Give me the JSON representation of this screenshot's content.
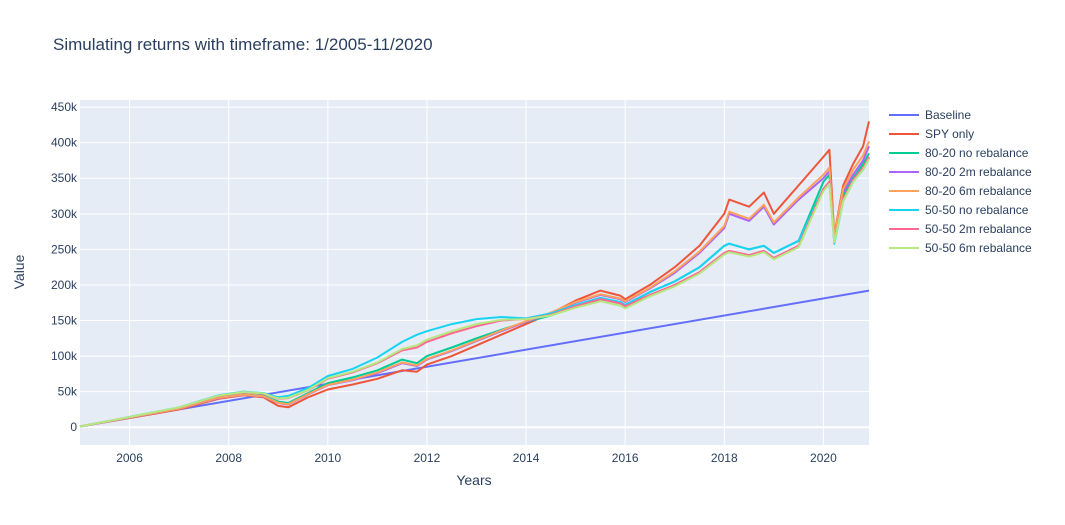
{
  "chart_data": {
    "type": "line",
    "title": "Simulating returns with timeframe: 1/2005-11/2020",
    "xlabel": "Years",
    "ylabel": "Value",
    "xlim": [
      2005.0,
      2020.92
    ],
    "ylim": [
      -25000,
      460000
    ],
    "x_ticks": [
      2006,
      2008,
      2010,
      2012,
      2014,
      2016,
      2018,
      2020
    ],
    "x_tick_labels": [
      "2006",
      "2008",
      "2010",
      "2012",
      "2014",
      "2016",
      "2018",
      "2020"
    ],
    "y_ticks": [
      0,
      50000,
      100000,
      150000,
      200000,
      250000,
      300000,
      350000,
      400000,
      450000
    ],
    "y_tick_labels": [
      "0",
      "50k",
      "100k",
      "150k",
      "200k",
      "250k",
      "300k",
      "350k",
      "400k",
      "450k"
    ],
    "grid": true,
    "legend_position": "right",
    "background": "#e5ecf6",
    "series": [
      {
        "name": "Baseline",
        "color": "#636efa",
        "x": [
          2005.0,
          2020.92
        ],
        "y": [
          1000,
          192000
        ]
      },
      {
        "name": "SPY only",
        "color": "#ef553b",
        "x": [
          2005.0,
          2006.0,
          2007.0,
          2007.8,
          2008.3,
          2008.7,
          2009.0,
          2009.2,
          2009.6,
          2010.0,
          2010.5,
          2011.0,
          2011.5,
          2011.8,
          2012.0,
          2012.5,
          2013.0,
          2013.5,
          2014.0,
          2014.5,
          2015.0,
          2015.5,
          2015.9,
          2016.0,
          2016.5,
          2017.0,
          2017.5,
          2018.0,
          2018.1,
          2018.5,
          2018.8,
          2019.0,
          2019.5,
          2020.0,
          2020.12,
          2020.22,
          2020.4,
          2020.6,
          2020.8,
          2020.92
        ],
        "y": [
          1000,
          13000,
          25000,
          40000,
          45000,
          42000,
          30000,
          28000,
          42000,
          53000,
          60000,
          68000,
          80000,
          78000,
          88000,
          100000,
          115000,
          130000,
          145000,
          160000,
          178000,
          192000,
          185000,
          180000,
          200000,
          225000,
          255000,
          300000,
          320000,
          310000,
          330000,
          300000,
          340000,
          380000,
          390000,
          270000,
          340000,
          370000,
          395000,
          430000
        ]
      },
      {
        "name": "80-20 no rebalance",
        "color": "#00cc96",
        "x": [
          2005.0,
          2006.0,
          2007.0,
          2007.8,
          2008.3,
          2008.7,
          2009.0,
          2009.2,
          2009.6,
          2010.0,
          2010.5,
          2011.0,
          2011.5,
          2011.8,
          2012.0,
          2012.5,
          2013.0,
          2013.5,
          2014.0,
          2014.5,
          2015.0,
          2015.5,
          2015.9,
          2016.0,
          2016.5,
          2017.0,
          2017.5,
          2018.0,
          2018.1,
          2018.5,
          2018.8,
          2019.0,
          2019.5,
          2020.0,
          2020.12,
          2020.22,
          2020.4,
          2020.6,
          2020.8,
          2020.92
        ],
        "y": [
          1000,
          14000,
          27000,
          42000,
          46000,
          44000,
          36000,
          34000,
          48000,
          62000,
          70000,
          80000,
          95000,
          90000,
          100000,
          112000,
          125000,
          137000,
          148000,
          157000,
          170000,
          180000,
          175000,
          172000,
          190000,
          205000,
          225000,
          255000,
          258000,
          250000,
          255000,
          245000,
          262000,
          345000,
          355000,
          262000,
          325000,
          350000,
          370000,
          385000
        ]
      },
      {
        "name": "80-20 2m rebalance",
        "color": "#ab63fa",
        "x": [
          2005.0,
          2006.0,
          2007.0,
          2007.8,
          2008.3,
          2008.7,
          2009.0,
          2009.2,
          2009.6,
          2010.0,
          2010.5,
          2011.0,
          2011.5,
          2011.8,
          2012.0,
          2012.5,
          2013.0,
          2013.5,
          2014.0,
          2014.5,
          2015.0,
          2015.5,
          2015.9,
          2016.0,
          2016.5,
          2017.0,
          2017.5,
          2018.0,
          2018.1,
          2018.5,
          2018.8,
          2019.0,
          2019.5,
          2020.0,
          2020.12,
          2020.22,
          2020.4,
          2020.6,
          2020.8,
          2020.92
        ],
        "y": [
          1000,
          13500,
          26000,
          41000,
          45500,
          43000,
          34000,
          32000,
          46000,
          59000,
          66000,
          76000,
          90000,
          86000,
          95000,
          107000,
          121000,
          135000,
          148000,
          160000,
          175000,
          186000,
          180000,
          176000,
          195000,
          217000,
          245000,
          280000,
          300000,
          290000,
          310000,
          285000,
          320000,
          350000,
          360000,
          265000,
          330000,
          355000,
          375000,
          395000
        ]
      },
      {
        "name": "80-20 6m rebalance",
        "color": "#ffa15a",
        "x": [
          2005.0,
          2006.0,
          2007.0,
          2007.8,
          2008.3,
          2008.7,
          2009.0,
          2009.2,
          2009.6,
          2010.0,
          2010.5,
          2011.0,
          2011.5,
          2011.8,
          2012.0,
          2012.5,
          2013.0,
          2013.5,
          2014.0,
          2014.5,
          2015.0,
          2015.5,
          2015.9,
          2016.0,
          2016.5,
          2017.0,
          2017.5,
          2018.0,
          2018.1,
          2018.5,
          2018.8,
          2019.0,
          2019.5,
          2020.0,
          2020.12,
          2020.22,
          2020.4,
          2020.6,
          2020.8,
          2020.92
        ],
        "y": [
          1000,
          13600,
          26200,
          41500,
          45800,
          43500,
          34500,
          32500,
          46500,
          59500,
          67000,
          77000,
          91000,
          87000,
          96000,
          108000,
          122000,
          136000,
          149000,
          161000,
          176000,
          187000,
          181000,
          177000,
          196000,
          219000,
          247000,
          283000,
          303000,
          293000,
          313000,
          288000,
          323000,
          355000,
          365000,
          268000,
          335000,
          362000,
          382000,
          402000
        ]
      },
      {
        "name": "50-50 no rebalance",
        "color": "#19d3f3",
        "x": [
          2005.0,
          2006.0,
          2007.0,
          2007.8,
          2008.3,
          2008.7,
          2009.0,
          2009.2,
          2009.6,
          2010.0,
          2010.5,
          2011.0,
          2011.5,
          2011.8,
          2012.0,
          2012.5,
          2013.0,
          2013.5,
          2014.0,
          2014.5,
          2015.0,
          2015.5,
          2015.9,
          2016.0,
          2016.5,
          2017.0,
          2017.5,
          2018.0,
          2018.1,
          2018.5,
          2018.8,
          2019.0,
          2019.5,
          2020.0,
          2020.12,
          2020.22,
          2020.4,
          2020.6,
          2020.8,
          2020.92
        ],
        "y": [
          1000,
          14500,
          28000,
          45000,
          50000,
          48000,
          42000,
          44000,
          55000,
          72000,
          82000,
          98000,
          120000,
          130000,
          135000,
          145000,
          152000,
          155000,
          153000,
          160000,
          172000,
          182000,
          176000,
          172000,
          190000,
          205000,
          225000,
          255000,
          258000,
          250000,
          255000,
          245000,
          262000,
          335000,
          345000,
          258000,
          318000,
          345000,
          362000,
          378000
        ]
      },
      {
        "name": "50-50 2m rebalance",
        "color": "#ff6692",
        "x": [
          2005.0,
          2006.0,
          2007.0,
          2007.8,
          2008.3,
          2008.7,
          2009.0,
          2009.2,
          2009.6,
          2010.0,
          2010.5,
          2011.0,
          2011.5,
          2011.8,
          2012.0,
          2012.5,
          2013.0,
          2013.5,
          2014.0,
          2014.5,
          2015.0,
          2015.5,
          2015.9,
          2016.0,
          2016.5,
          2017.0,
          2017.5,
          2018.0,
          2018.1,
          2018.5,
          2018.8,
          2019.0,
          2019.5,
          2020.0,
          2020.12,
          2020.22,
          2020.4,
          2020.6,
          2020.8,
          2020.92
        ],
        "y": [
          1000,
          14200,
          27500,
          44000,
          49000,
          47000,
          40000,
          41000,
          52000,
          68000,
          77000,
          90000,
          108000,
          112000,
          120000,
          132000,
          142000,
          150000,
          152000,
          158000,
          170000,
          180000,
          174000,
          170000,
          186000,
          200000,
          218000,
          245000,
          248000,
          242000,
          248000,
          238000,
          255000,
          335000,
          345000,
          262000,
          320000,
          348000,
          365000,
          380000
        ]
      },
      {
        "name": "50-50 6m rebalance",
        "color": "#b6e880",
        "x": [
          2005.0,
          2006.0,
          2007.0,
          2007.8,
          2008.3,
          2008.7,
          2009.0,
          2009.2,
          2009.6,
          2010.0,
          2010.5,
          2011.0,
          2011.5,
          2011.8,
          2012.0,
          2012.5,
          2013.0,
          2013.5,
          2014.0,
          2014.5,
          2015.0,
          2015.5,
          2015.9,
          2016.0,
          2016.5,
          2017.0,
          2017.5,
          2018.0,
          2018.1,
          2018.5,
          2018.8,
          2019.0,
          2019.5,
          2020.0,
          2020.12,
          2020.22,
          2020.4,
          2020.6,
          2020.8,
          2020.92
        ],
        "y": [
          1000,
          14300,
          27800,
          44500,
          49500,
          47500,
          40500,
          41500,
          52500,
          69000,
          78000,
          91000,
          110000,
          115000,
          123000,
          135000,
          145000,
          151000,
          152000,
          157000,
          168000,
          177000,
          171000,
          167000,
          184000,
          198000,
          216000,
          243000,
          246000,
          240000,
          246000,
          236000,
          253000,
          332000,
          342000,
          260000,
          318000,
          345000,
          362000,
          377000
        ]
      }
    ]
  }
}
